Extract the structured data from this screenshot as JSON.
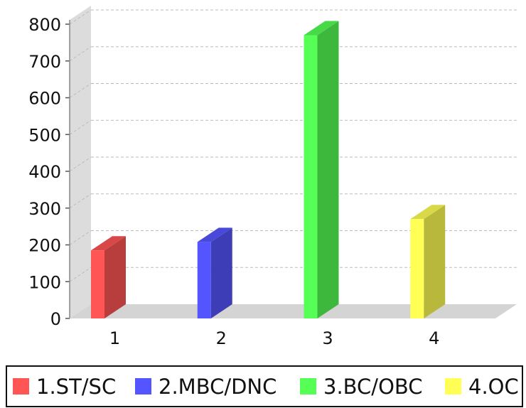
{
  "chart_data": {
    "type": "bar",
    "title": "",
    "xlabel": "",
    "ylabel": "",
    "categories": [
      "1",
      "2",
      "3",
      "4"
    ],
    "ylim": [
      0,
      800
    ],
    "yticks": [
      0,
      100,
      200,
      300,
      400,
      500,
      600,
      700,
      800
    ],
    "grid": true,
    "three_d": true,
    "legend_position": "bottom",
    "series": [
      {
        "name": "1.ST/SC",
        "category": "1",
        "value": 185,
        "color": "#ff5555"
      },
      {
        "name": "2.MBC/DNC",
        "category": "2",
        "value": 208,
        "color": "#5555ff"
      },
      {
        "name": "3.BC/OBC",
        "category": "3",
        "value": 770,
        "color": "#55ff55"
      },
      {
        "name": "4.OC",
        "category": "4",
        "value": 270,
        "color": "#ffff55"
      }
    ]
  }
}
